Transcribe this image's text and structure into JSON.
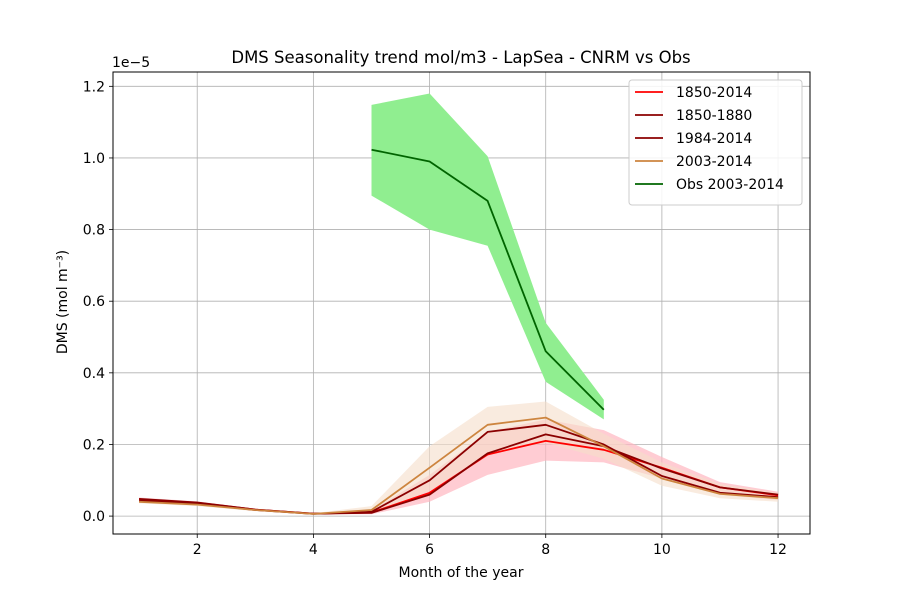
{
  "chart_data": {
    "type": "line",
    "title": "DMS Seasonality trend mol/m3 - LapSea - CNRM vs Obs",
    "xlabel": "Month of the year",
    "ylabel": "DMS (mol m⁻³)",
    "y_offset_label": "1e−5",
    "xlim": [
      0.55,
      12.55
    ],
    "ylim": [
      -0.05,
      1.24
    ],
    "y_scale_note": "values in units of 1e-5 mol/m3",
    "grid": true,
    "legend_position": "top-right",
    "x_ticks": [
      2,
      4,
      6,
      8,
      10,
      12
    ],
    "x_tick_labels": [
      "2",
      "4",
      "6",
      "8",
      "10",
      "12"
    ],
    "y_ticks": [
      0.0,
      0.2,
      0.4,
      0.6,
      0.8,
      1.0,
      1.2
    ],
    "y_tick_labels": [
      "0.0",
      "0.2",
      "0.4",
      "0.6",
      "0.8",
      "1.0",
      "1.2"
    ],
    "series": [
      {
        "name": "1850-2014",
        "color": "#ff0000",
        "band_color": "#ffb6c1",
        "band_opacity": 0.7,
        "x": [
          1,
          2,
          3,
          4,
          5,
          6,
          7,
          8,
          9,
          10,
          11,
          12
        ],
        "values": [
          0.047,
          0.037,
          0.018,
          0.007,
          0.01,
          0.065,
          0.172,
          0.21,
          0.185,
          0.135,
          0.08,
          0.058
        ],
        "lower": [
          0.043,
          0.033,
          0.015,
          0.005,
          0.005,
          0.04,
          0.115,
          0.155,
          0.15,
          0.105,
          0.06,
          0.045
        ],
        "upper": [
          0.052,
          0.041,
          0.021,
          0.009,
          0.015,
          0.115,
          0.235,
          0.27,
          0.24,
          0.165,
          0.095,
          0.068
        ]
      },
      {
        "name": "1850-1880",
        "color": "#8b0000",
        "x": [
          1,
          2,
          3,
          4,
          5,
          6,
          7,
          8,
          9,
          10,
          11,
          12
        ],
        "values": [
          0.048,
          0.038,
          0.018,
          0.007,
          0.009,
          0.06,
          0.175,
          0.228,
          0.195,
          0.133,
          0.08,
          0.06
        ]
      },
      {
        "name": "1984-2014",
        "color": "#8b0000",
        "x": [
          1,
          2,
          3,
          4,
          5,
          6,
          7,
          8,
          9,
          10,
          11,
          12
        ],
        "values": [
          0.043,
          0.035,
          0.017,
          0.006,
          0.012,
          0.1,
          0.235,
          0.255,
          0.2,
          0.112,
          0.065,
          0.053
        ]
      },
      {
        "name": "2003-2014",
        "color": "#cd853f",
        "band_color": "#f5deca",
        "band_opacity": 0.6,
        "x": [
          1,
          2,
          3,
          4,
          5,
          6,
          7,
          8,
          9,
          10,
          11,
          12
        ],
        "values": [
          0.04,
          0.032,
          0.017,
          0.006,
          0.017,
          0.135,
          0.255,
          0.275,
          0.195,
          0.105,
          0.062,
          0.05
        ],
        "lower": [
          0.036,
          0.028,
          0.014,
          0.004,
          0.008,
          0.07,
          0.175,
          0.205,
          0.16,
          0.085,
          0.05,
          0.04
        ],
        "upper": [
          0.045,
          0.036,
          0.02,
          0.008,
          0.028,
          0.195,
          0.305,
          0.32,
          0.23,
          0.15,
          0.09,
          0.065
        ]
      },
      {
        "name": "Obs 2003-2014",
        "color": "#006400",
        "band_color": "#90ee90",
        "band_opacity": 1.0,
        "x": [
          5,
          6,
          7,
          8,
          9
        ],
        "values": [
          1.023,
          0.99,
          0.88,
          0.46,
          0.297
        ],
        "lower": [
          0.895,
          0.8,
          0.755,
          0.375,
          0.27
        ],
        "upper": [
          1.148,
          1.18,
          1.005,
          0.54,
          0.325
        ]
      }
    ]
  }
}
